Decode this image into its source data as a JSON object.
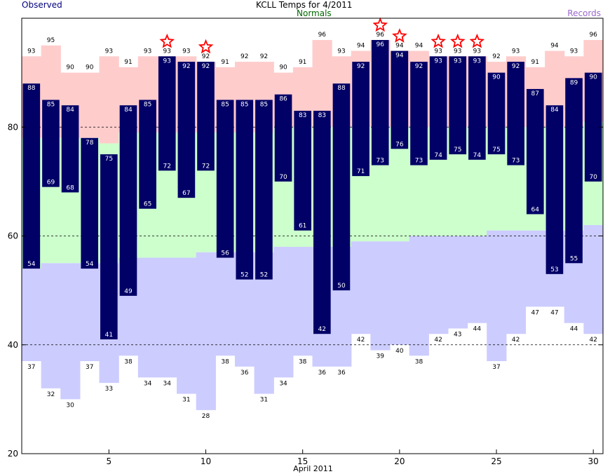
{
  "chart_data": {
    "type": "bar",
    "title": "KCLL Temps for 4/2011",
    "legend": {
      "observed": "Observed",
      "normals": "Normals",
      "records": "Records"
    },
    "xlabel": "April 2011",
    "ylim": [
      20,
      100
    ],
    "yticks": [
      20,
      40,
      60,
      80
    ],
    "xticks": [
      5,
      10,
      15,
      20,
      25,
      30
    ],
    "grid": "dashed horizontal lines at 40, 60, 80",
    "days": [
      1,
      2,
      3,
      4,
      5,
      6,
      7,
      8,
      9,
      10,
      11,
      12,
      13,
      14,
      15,
      16,
      17,
      18,
      19,
      20,
      21,
      22,
      23,
      24,
      25,
      26,
      27,
      28,
      29,
      30
    ],
    "observed_high": [
      88,
      85,
      84,
      78,
      75,
      84,
      85,
      93,
      92,
      92,
      85,
      85,
      85,
      86,
      83,
      83,
      88,
      92,
      96,
      94,
      92,
      93,
      93,
      93,
      90,
      92,
      87,
      84,
      89,
      90
    ],
    "observed_low": [
      54,
      69,
      68,
      54,
      41,
      49,
      65,
      72,
      67,
      72,
      56,
      52,
      52,
      70,
      61,
      42,
      50,
      71,
      73,
      76,
      73,
      74,
      75,
      74,
      75,
      73,
      64,
      53,
      55,
      70
    ],
    "record_high": [
      93,
      95,
      90,
      90,
      93,
      91,
      93,
      93,
      93,
      92,
      91,
      92,
      92,
      90,
      91,
      96,
      93,
      94,
      96,
      94,
      94,
      93,
      93,
      93,
      92,
      93,
      91,
      94,
      93,
      96
    ],
    "record_low": [
      37,
      32,
      30,
      37,
      33,
      38,
      34,
      34,
      31,
      28,
      38,
      36,
      31,
      34,
      38,
      36,
      36,
      42,
      39,
      40,
      38,
      42,
      43,
      44,
      37,
      42,
      47,
      47,
      44,
      42
    ],
    "normal_high": [
      78,
      78,
      78,
      78,
      77,
      79,
      79,
      79,
      79,
      79,
      79,
      79,
      79,
      80,
      80,
      80,
      80,
      80,
      80,
      80,
      80,
      80,
      80,
      80,
      80,
      80,
      80,
      80,
      80,
      81
    ],
    "normal_low": [
      54,
      55,
      55,
      55,
      55,
      56,
      56,
      56,
      56,
      57,
      57,
      57,
      57,
      58,
      58,
      58,
      58,
      59,
      59,
      59,
      60,
      60,
      60,
      60,
      61,
      61,
      61,
      61,
      61,
      62
    ],
    "record_set_days": [
      8,
      10,
      19,
      20,
      22,
      23,
      24
    ],
    "colors": {
      "observed_bar": "#000066",
      "record_high_band": "#ffcccc",
      "normal_band": "#ccffcc",
      "record_low_band": "#ccccff",
      "grid": "#000000",
      "star": "#ff0000",
      "observed_text": "#000080",
      "normals_text": "#006600",
      "records_text": "#9966cc"
    }
  }
}
